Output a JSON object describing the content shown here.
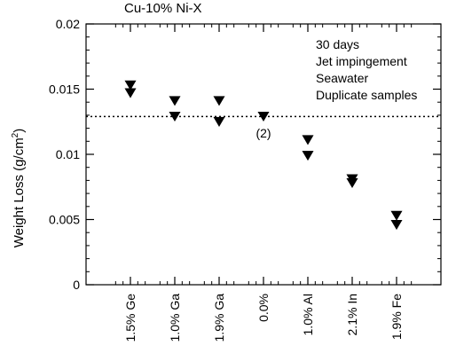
{
  "chart_data": {
    "type": "scatter",
    "title": "Cu-10% Ni-X",
    "ylabel": "Weight Loss (g/cm",
    "ylabel_superscript": "2",
    "ylabel_suffix": ")",
    "xlabel": "",
    "categories": [
      "1.5% Ge",
      "1.0% Ga",
      "1.9% Ga",
      "0.0%",
      "1.0% Al",
      "2.1% In",
      "1.9% Fe"
    ],
    "ylim": [
      0,
      0.02
    ],
    "yticks": [
      0,
      0.005,
      0.01,
      0.015,
      0.02
    ],
    "ytick_labels": [
      "0",
      "0.005",
      "0.01",
      "0.015",
      "0.02"
    ],
    "series": [
      {
        "marker": "down-triangle",
        "points": [
          {
            "category": "1.5% Ge",
            "y": 0.0153
          },
          {
            "category": "1.5% Ge",
            "y": 0.0147
          },
          {
            "category": "1.0% Ga",
            "y": 0.0141
          },
          {
            "category": "1.0% Ga",
            "y": 0.0129
          },
          {
            "category": "1.9% Ga",
            "y": 0.0141
          },
          {
            "category": "1.9% Ga",
            "y": 0.0125
          },
          {
            "category": "0.0%",
            "y": 0.0129
          },
          {
            "category": "1.0% Al",
            "y": 0.0111
          },
          {
            "category": "1.0% Al",
            "y": 0.0099
          },
          {
            "category": "2.1% In",
            "y": 0.0081
          },
          {
            "category": "2.1% In",
            "y": 0.0078
          },
          {
            "category": "1.9% Fe",
            "y": 0.0053
          },
          {
            "category": "1.9% Fe",
            "y": 0.0046
          }
        ]
      }
    ],
    "reference_line": {
      "y": 0.0129,
      "style": "dotted"
    },
    "annotations": [
      {
        "category": "0.0%",
        "y": 0.0113,
        "text": "(2)"
      }
    ],
    "legend_text": [
      "30 days",
      "Jet impingement",
      "Seawater",
      "Duplicate samples"
    ],
    "legend_placement": "top-right",
    "grid": false,
    "colors": {
      "marker": "#000000",
      "axis": "#000000",
      "background": "#ffffff"
    }
  }
}
